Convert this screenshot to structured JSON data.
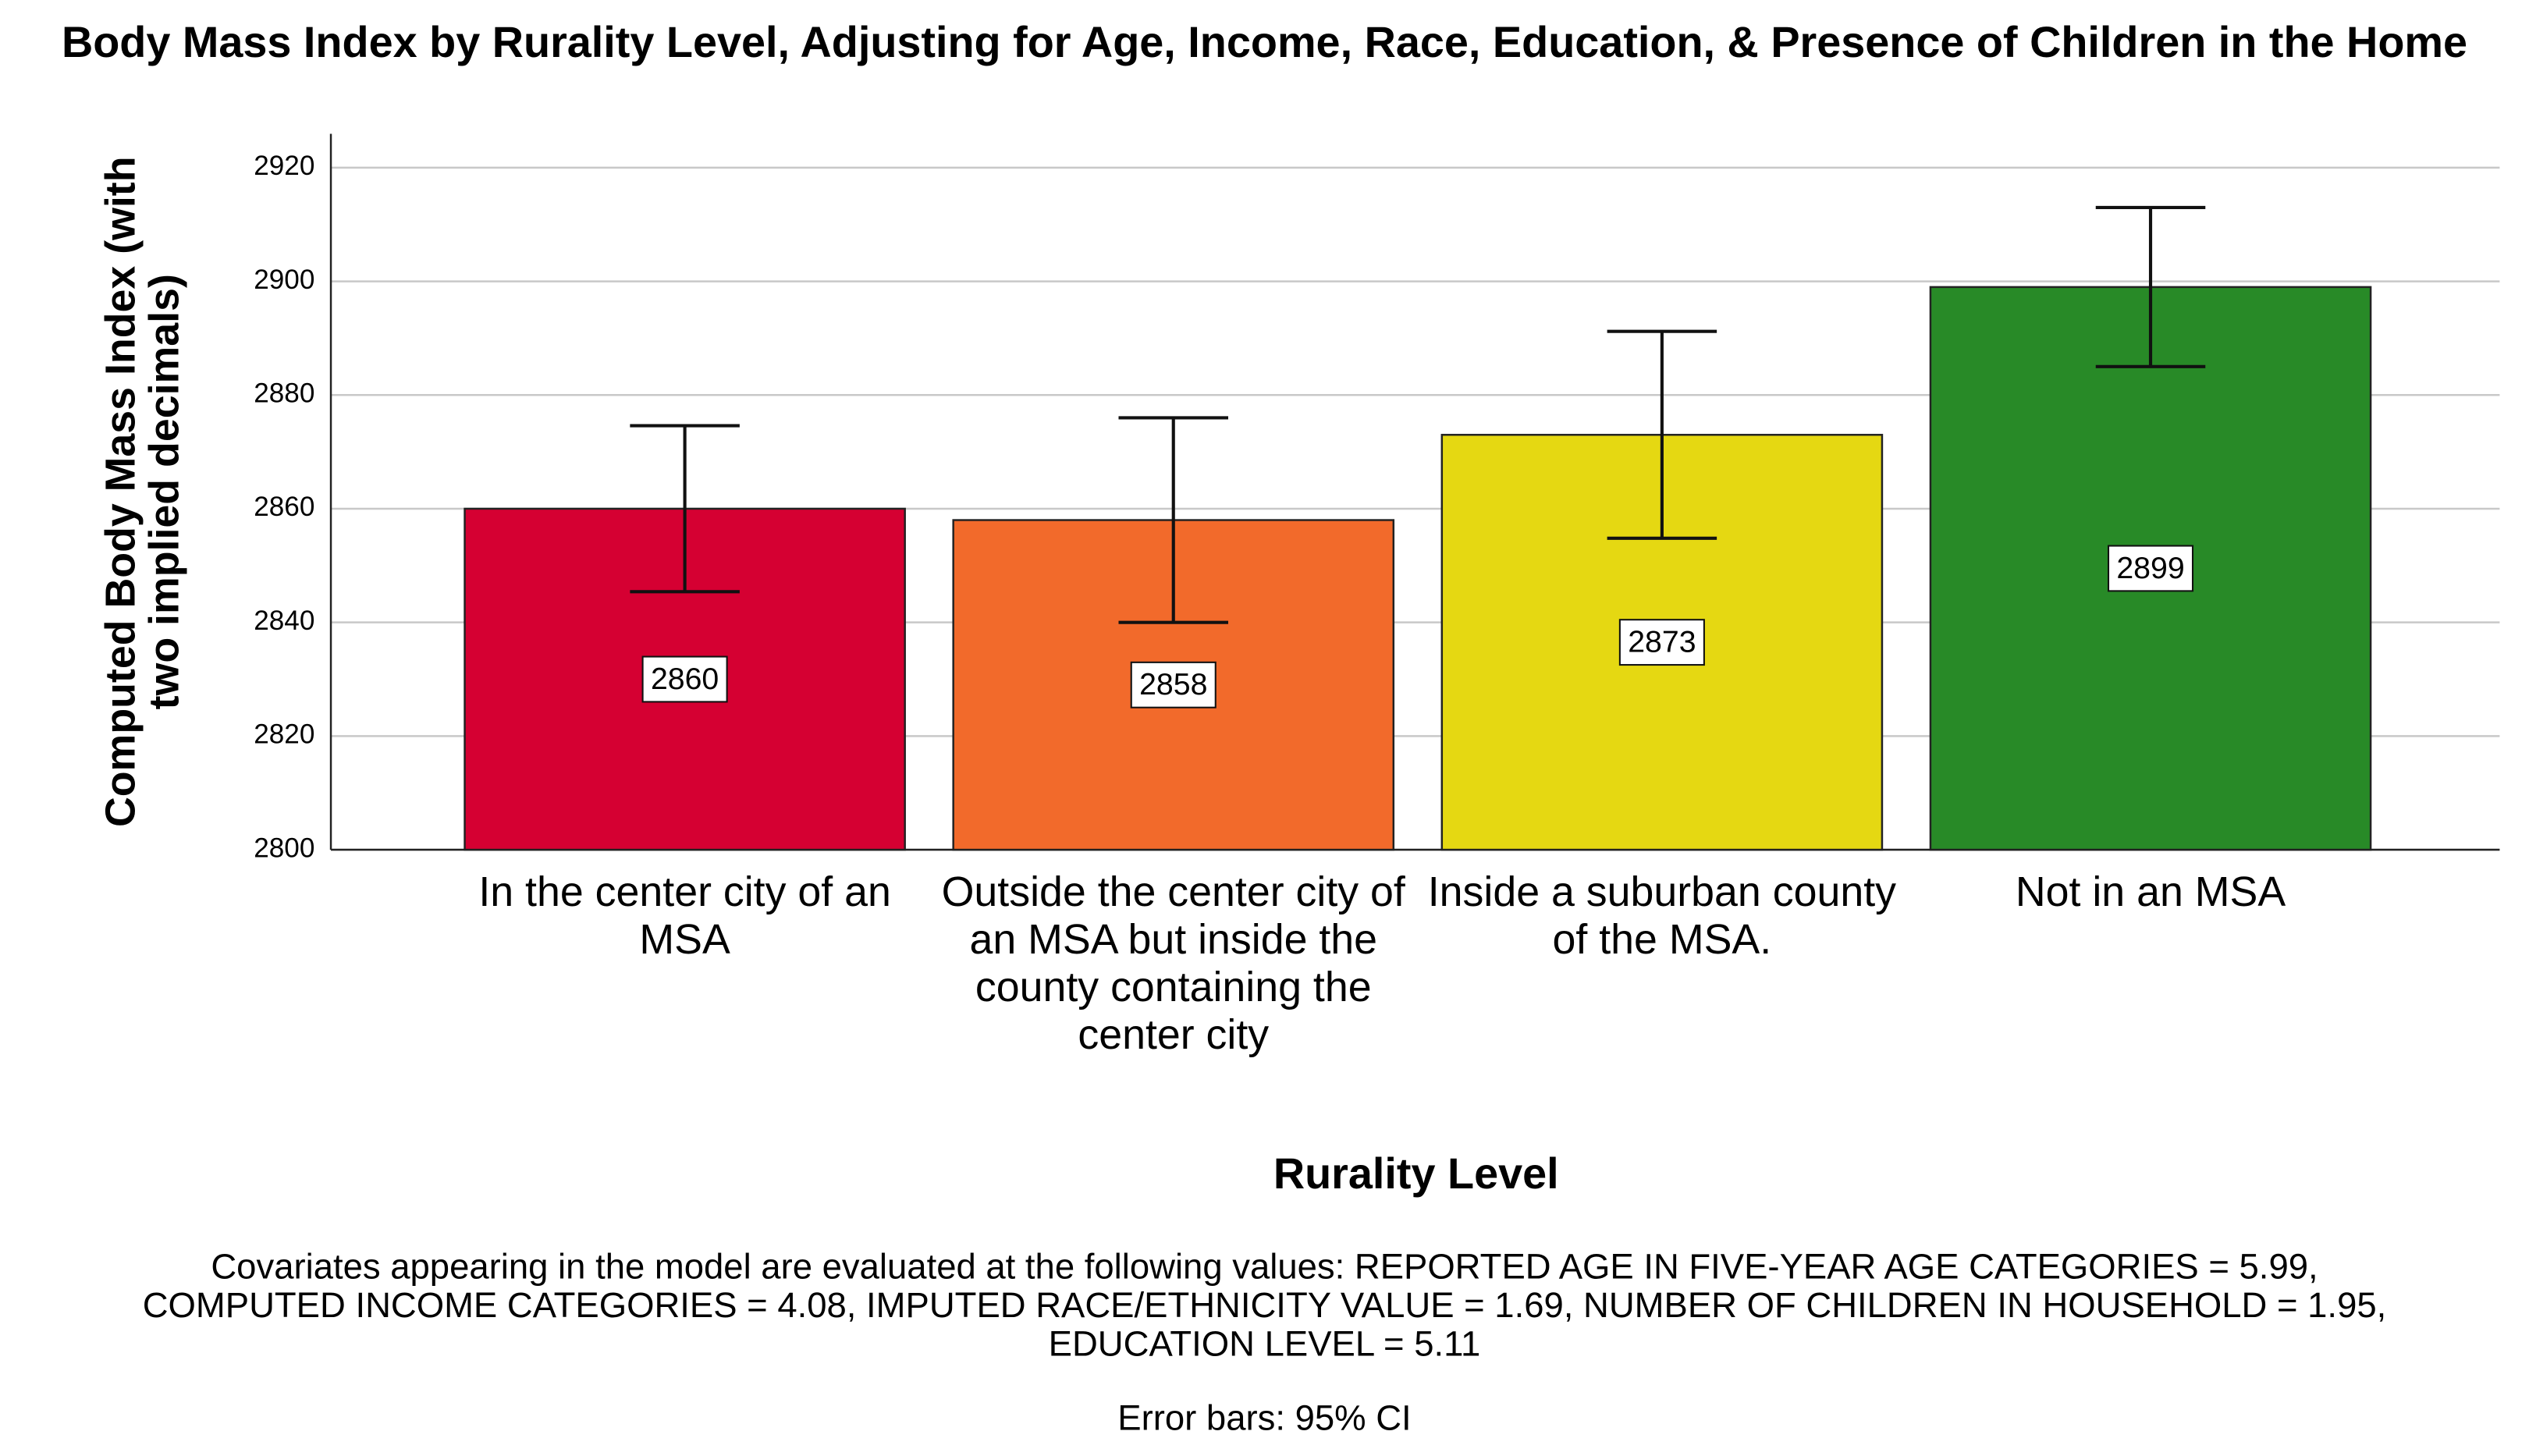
{
  "chart_data": {
    "type": "bar",
    "title": "Body Mass Index by Rurality Level, Adjusting for Age, Income, Race, Education, & Presence of Children in the Home",
    "ylabel": "Computed Body Mass Index (with two implied decimals)",
    "xlabel": "Rurality Level",
    "categories": [
      "In the center city of an MSA",
      "Outside the center city of an MSA but inside the county containing the center city",
      "Inside a suburban county of the MSA.",
      "Not in an MSA"
    ],
    "values": [
      2860,
      2858,
      2873,
      2899
    ],
    "errors": [
      14.6,
      18,
      18.2,
      14
    ],
    "colors": [
      "#d50032",
      "#f26a2b",
      "#e5d812",
      "#288a27"
    ],
    "ylim": [
      2800,
      2920
    ],
    "yticks": [
      2800,
      2820,
      2840,
      2860,
      2880,
      2900,
      2920
    ],
    "grid": true,
    "note_lines": [
      "Covariates appearing in the model are evaluated at the following values: REPORTED AGE IN FIVE-YEAR AGE CATEGORIES = 5.99,",
      "COMPUTED INCOME CATEGORIES = 4.08, IMPUTED RACE/ETHNICITY VALUE = 1.69, NUMBER OF CHILDREN IN HOUSEHOLD = 1.95,",
      "EDUCATION LEVEL = 5.11"
    ],
    "error_note": "Error bars: 95% CI"
  }
}
